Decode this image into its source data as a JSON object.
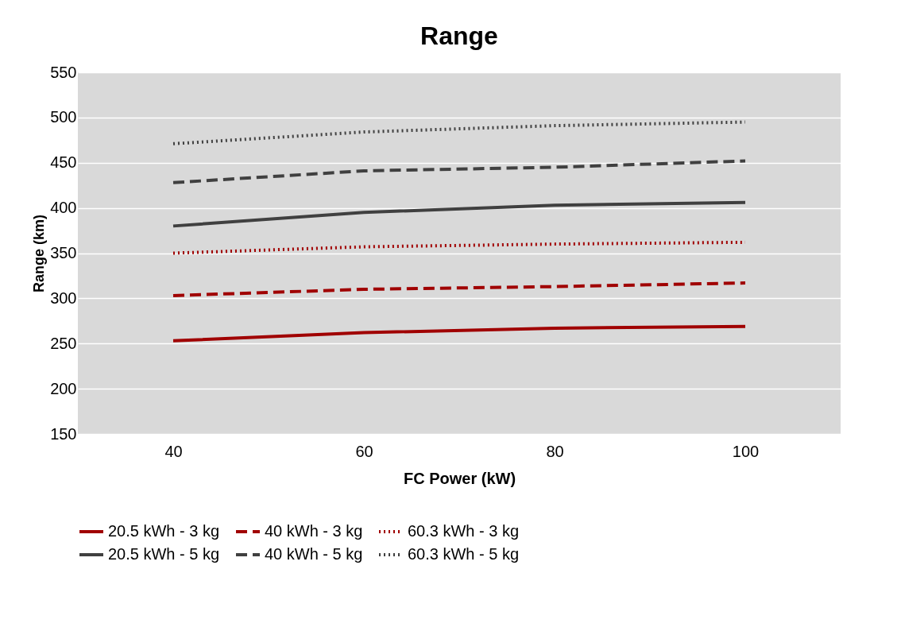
{
  "chart_data": {
    "type": "line",
    "title": "Range",
    "xlabel": "FC Power (kW)",
    "ylabel": "Range (km)",
    "categories": [
      "40",
      "60",
      "80",
      "100"
    ],
    "ylim": [
      150,
      550
    ],
    "yticks": [
      150,
      200,
      250,
      300,
      350,
      400,
      450,
      500,
      550
    ],
    "grid": "y",
    "legend": "bottom",
    "marker": "none",
    "series": [
      {
        "name": "20.5 kWh - 3 kg",
        "color": "#a00000",
        "line_style": "solid",
        "values": [
          253,
          262,
          267,
          269
        ]
      },
      {
        "name": "40 kWh - 3 kg",
        "color": "#a00000",
        "line_style": "dashed",
        "values": [
          303,
          310,
          313,
          317
        ]
      },
      {
        "name": "60.3 kWh - 3 kg",
        "color": "#a00000",
        "line_style": "dotted",
        "values": [
          350,
          357,
          360,
          362
        ]
      },
      {
        "name": "20.5 kWh - 5 kg",
        "color": "#404040",
        "line_style": "solid",
        "values": [
          380,
          395,
          403,
          406
        ]
      },
      {
        "name": "40 kWh - 5 kg",
        "color": "#404040",
        "line_style": "dashed",
        "values": [
          428,
          441,
          445,
          452
        ]
      },
      {
        "name": "60.3 kWh - 5 kg",
        "color": "#404040",
        "line_style": "dotted",
        "values": [
          471,
          484,
          491,
          495
        ]
      }
    ]
  }
}
